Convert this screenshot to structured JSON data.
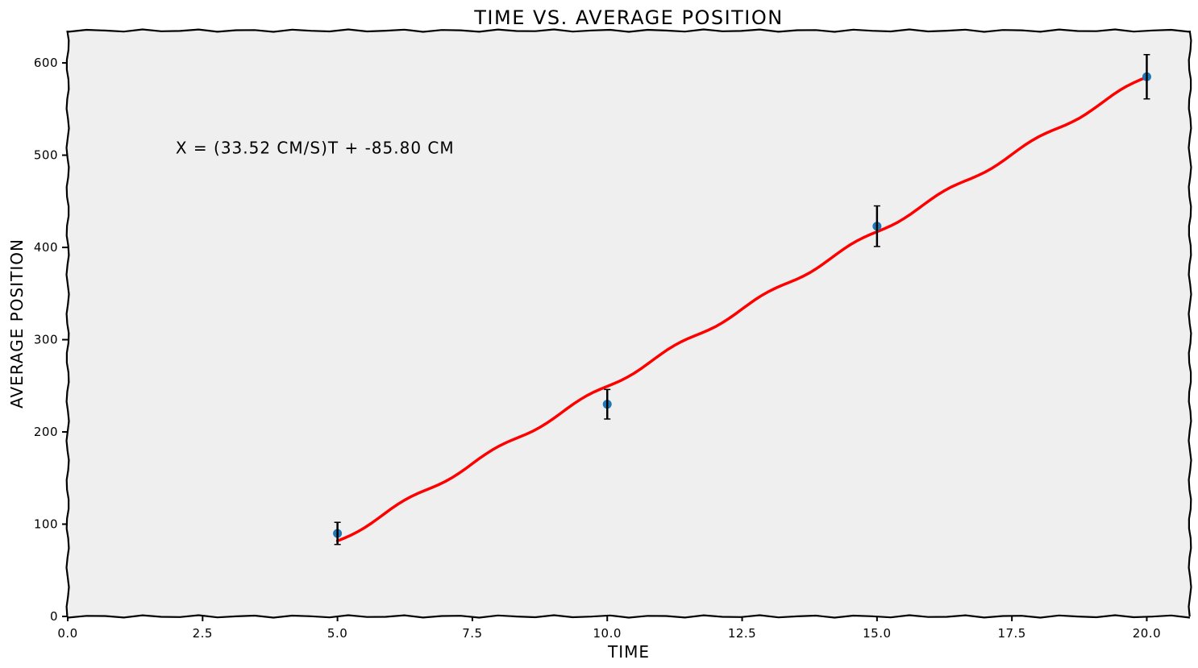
{
  "chart_data": {
    "type": "scatter",
    "title": "TIME VS. AVERAGE POSITION",
    "xlabel": "TIME",
    "ylabel": "AVERAGE POSITION",
    "xlim": [
      0.0,
      20.8
    ],
    "ylim": [
      0,
      635
    ],
    "x_ticks": [
      0.0,
      2.5,
      5.0,
      7.5,
      10.0,
      12.5,
      15.0,
      17.5,
      20.0
    ],
    "x_tick_labels": [
      "0.0",
      "2.5",
      "5.0",
      "7.5",
      "10.0",
      "12.5",
      "15.0",
      "17.5",
      "20.0"
    ],
    "y_ticks": [
      0,
      100,
      200,
      300,
      400,
      500,
      600
    ],
    "y_tick_labels": [
      "0",
      "100",
      "200",
      "300",
      "400",
      "500",
      "600"
    ],
    "style": "xkcd",
    "background": "#efefef",
    "grid": false,
    "series": [
      {
        "kind": "scatter-errorbar",
        "color": "#1f77b4",
        "errorbar_color": "#000000",
        "x": [
          5,
          10,
          15,
          20
        ],
        "y": [
          90,
          230,
          423,
          585
        ],
        "yerr": [
          12,
          16,
          22,
          24
        ]
      },
      {
        "kind": "fit-line",
        "color": "#ff0000",
        "slope": 33.52,
        "intercept": -85.8,
        "x_range": [
          5,
          20
        ]
      }
    ],
    "annotation": {
      "text": "X = (33.52 CM/S)T + -85.80 CM",
      "x": 2.0,
      "y": 500
    }
  }
}
